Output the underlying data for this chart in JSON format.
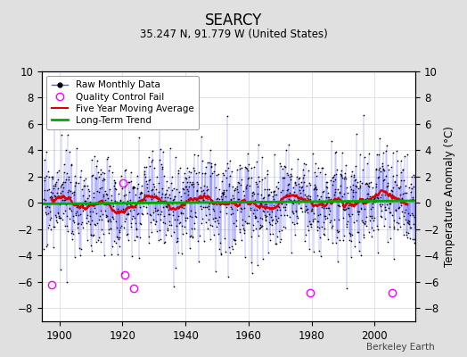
{
  "title": "SEARCY",
  "subtitle": "35.247 N, 91.779 W (United States)",
  "ylabel": "Temperature Anomaly (°C)",
  "credit": "Berkeley Earth",
  "year_start": 1895,
  "year_end": 2012,
  "ylim": [
    -9,
    10
  ],
  "yticks": [
    -8,
    -6,
    -4,
    -2,
    0,
    2,
    4,
    6,
    8,
    10
  ],
  "xticks": [
    1900,
    1920,
    1940,
    1960,
    1980,
    2000
  ],
  "bg_color": "#e0e0e0",
  "plot_bg_color": "#ffffff",
  "stem_color": "#5555ff",
  "dot_color": "#000000",
  "ma_color": "#dd0000",
  "trend_color": "#00aa00",
  "qc_color": "#ff00ff",
  "seed": 17,
  "noise_std": 1.8,
  "ma_window": 60,
  "qc_times": [
    1897.5,
    1920.2,
    1920.8,
    1923.5,
    1979.5,
    2005.5
  ],
  "qc_values": [
    -6.2,
    1.5,
    -5.5,
    -6.5,
    -6.8,
    -6.8
  ]
}
